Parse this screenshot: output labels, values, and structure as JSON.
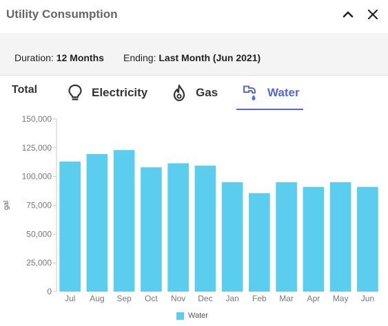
{
  "header": {
    "title": "Utility Consumption"
  },
  "filters": {
    "duration_label": "Duration:",
    "duration_value": "12 Months",
    "ending_label": "Ending:",
    "ending_value": "Last Month (Jun 2021)"
  },
  "tabs": {
    "total": "Total",
    "electricity": "Electricity",
    "gas": "Gas",
    "water": "Water",
    "active": "water",
    "active_color": "#5566dd"
  },
  "chart_data": {
    "type": "bar",
    "categories": [
      "Jul",
      "Aug",
      "Sep",
      "Oct",
      "Nov",
      "Dec",
      "Jan",
      "Feb",
      "Mar",
      "Apr",
      "May",
      "Jun"
    ],
    "series": [
      {
        "name": "Water",
        "color": "#5bcdef",
        "values": [
          113000,
          119500,
          123000,
          108000,
          111500,
          109500,
          95000,
          85500,
          95000,
          91000,
          95000,
          91000
        ]
      }
    ],
    "ylabel": "gal",
    "ylim": [
      0,
      150000
    ],
    "yticks": [
      0,
      25000,
      50000,
      75000,
      100000,
      125000,
      150000
    ],
    "ytick_labels": [
      "0",
      "25,000",
      "50,000",
      "75,000",
      "100,000",
      "125,000",
      "150,000"
    ],
    "grid": false,
    "legend": "bottom-center"
  }
}
